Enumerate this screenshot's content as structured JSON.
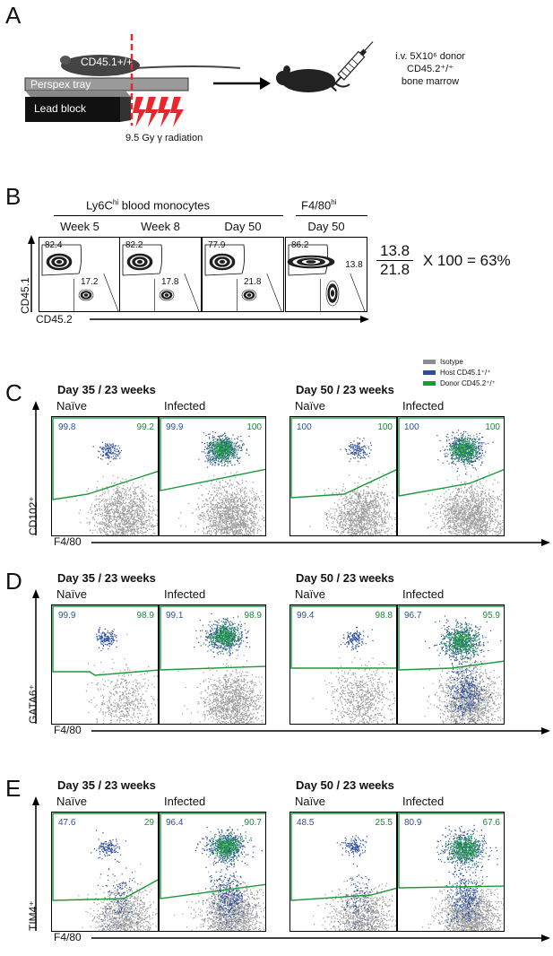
{
  "panelA": {
    "letter": "A",
    "mouse_label": "CD45.1+/+",
    "tray_label": "Perspex tray",
    "block_label": "Lead block",
    "radiation_label": "9.5 Gy γ radiation",
    "injection_line1": "i.v. 5X10⁶ donor",
    "injection_line2": "CD45.2⁺/⁺",
    "injection_line3": "bone marrow"
  },
  "panelB": {
    "letter": "B",
    "group1_title": "Ly6C",
    "group1_sup": "hi",
    "group1_rest": " blood monocytes",
    "group2_title": "F4/80",
    "group2_sup": "hi",
    "y_axis": "CD45.1",
    "x_axis": "CD45.2",
    "plots": [
      {
        "title": "Week 5",
        "host": "82.4",
        "donor": "17.2"
      },
      {
        "title": "Week 8",
        "host": "82.2",
        "donor": "17.8"
      },
      {
        "title": "Day 50",
        "host": "77.9",
        "donor": "21.8"
      },
      {
        "title": "Day 50",
        "host": "86.2",
        "donor": "13.8"
      }
    ],
    "eq_num": "13.8",
    "eq_den": "21.8",
    "eq_rest": "X 100 = 63%"
  },
  "legend": {
    "isotype": "Isotype",
    "host": "Host CD45.1⁺/⁺",
    "donor": "Donor CD45.2⁺/⁺"
  },
  "colors": {
    "host": "#2d4f9c",
    "donor": "#1a9a3a",
    "isotype": "#8c8c8c",
    "radiation": "#e8262b"
  },
  "panels": [
    {
      "letter": "C",
      "y_axis": "CD102⁺",
      "x_axis": "F4/80",
      "group1": "Day 35 / 23 weeks",
      "group2": "Day 50 / 23 weeks",
      "plots": [
        {
          "title": "Naïve",
          "host": "99.8",
          "donor": "99.2"
        },
        {
          "title": "Infected",
          "host": "99.9",
          "donor": "100"
        },
        {
          "title": "Naïve",
          "host": "100",
          "donor": "100"
        },
        {
          "title": "Infected",
          "host": "100",
          "donor": "100"
        }
      ]
    },
    {
      "letter": "D",
      "y_axis": "GATA6⁺",
      "x_axis": "F4/80",
      "group1": "Day 35 / 23 weeks",
      "group2": "Day 50 / 23 weeks",
      "plots": [
        {
          "title": "Naïve",
          "host": "99.9",
          "donor": "98.9"
        },
        {
          "title": "Infected",
          "host": "99.1",
          "donor": "98.9"
        },
        {
          "title": "Naïve",
          "host": "99.4",
          "donor": "98.8"
        },
        {
          "title": "Infected",
          "host": "96.7",
          "donor": "95.9"
        }
      ]
    },
    {
      "letter": "E",
      "y_axis": "TIM4⁺",
      "x_axis": "F4/80",
      "group1": "Day 35 / 23 weeks",
      "group2": "Day 50 / 23 weeks",
      "plots": [
        {
          "title": "Naïve",
          "host": "47.6",
          "donor": "29"
        },
        {
          "title": "Infected",
          "host": "96.4",
          "donor": "90.7"
        },
        {
          "title": "Naïve",
          "host": "48.5",
          "donor": "25.5"
        },
        {
          "title": "Infected",
          "host": "80.9",
          "donor": "67.6"
        }
      ]
    }
  ]
}
